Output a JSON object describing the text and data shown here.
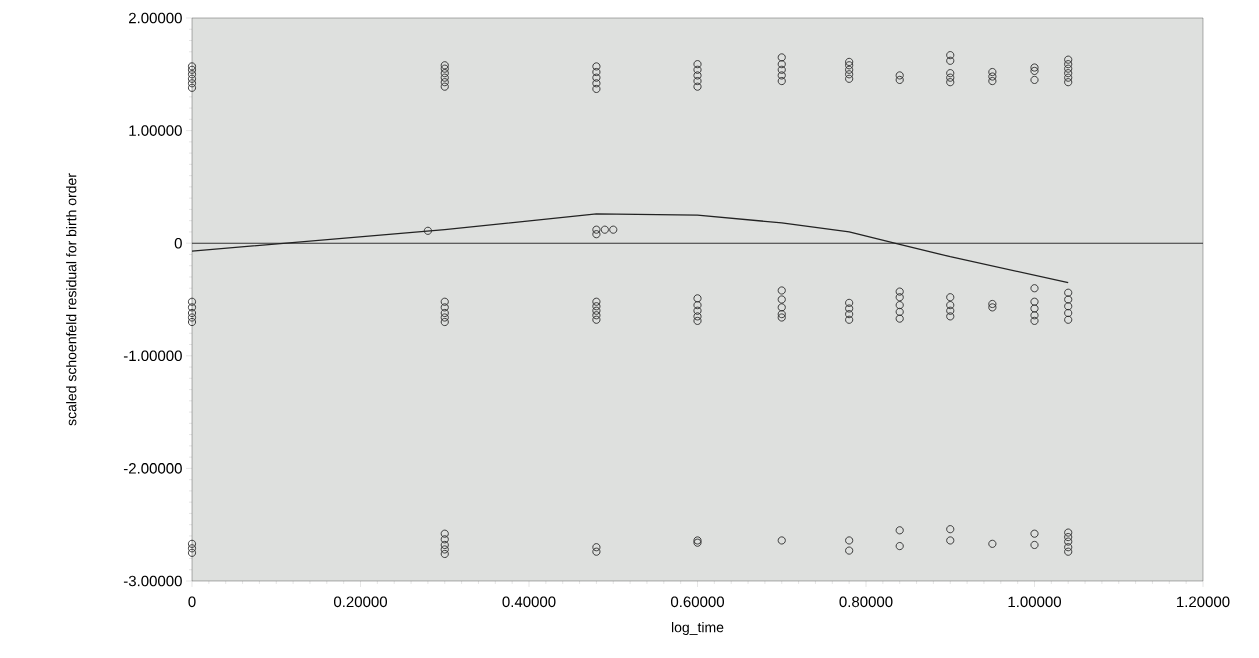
{
  "chart_data": {
    "type": "scatter",
    "xlabel": "log_time",
    "ylabel": "scaled schoenfeld residual for birth order",
    "xlim": [
      0,
      1.2
    ],
    "ylim": [
      -3,
      2
    ],
    "xticks": [
      0,
      {
        "value": 0.2,
        "label": "0.20000"
      },
      {
        "value": 0.4,
        "label": "0.40000"
      },
      {
        "value": 0.6,
        "label": "0.60000"
      },
      {
        "value": 0.8,
        "label": "0.80000"
      },
      {
        "value": 1.0,
        "label": "1.00000"
      },
      {
        "value": 1.2,
        "label": "1.20000"
      }
    ],
    "yticks": [
      {
        "value": -3,
        "label": "-3.00000"
      },
      {
        "value": -2,
        "label": "-2.00000"
      },
      {
        "value": -1,
        "label": "-1.00000"
      },
      0,
      {
        "value": 1,
        "label": "1.00000"
      },
      {
        "value": 2,
        "label": "2.00000"
      }
    ],
    "grid": false,
    "ref_lines": [
      {
        "axis": "y",
        "value": 0,
        "color": "#333333"
      }
    ],
    "series": [
      {
        "marker": "circle",
        "color": "#2a2a2a",
        "x": [
          0,
          0,
          0,
          0,
          0,
          0,
          0,
          0,
          0,
          0,
          0,
          0,
          0,
          0,
          0.3,
          0.3,
          0.3,
          0.3,
          0.3,
          0.3,
          0.3,
          0.3,
          0.3,
          0.3,
          0.3,
          0.3,
          0.3,
          0.3,
          0.3,
          0.3,
          0.48,
          0.48,
          0.48,
          0.48,
          0.48,
          0.48,
          0.48,
          0.48,
          0.48,
          0.48,
          0.48,
          0.48,
          0.48,
          0.6,
          0.6,
          0.6,
          0.6,
          0.6,
          0.6,
          0.6,
          0.6,
          0.6,
          0.6,
          0.6,
          0.6,
          0.7,
          0.7,
          0.7,
          0.7,
          0.7,
          0.7,
          0.7,
          0.7,
          0.7,
          0.7,
          0.7,
          0.78,
          0.78,
          0.78,
          0.78,
          0.78,
          0.78,
          0.78,
          0.78,
          0.78,
          0.78,
          0.78,
          0.84,
          0.84,
          0.84,
          0.84,
          0.84,
          0.84,
          0.84,
          0.84,
          0.84,
          0.9,
          0.9,
          0.9,
          0.9,
          0.9,
          0.9,
          0.9,
          0.9,
          0.9,
          0.9,
          0.9,
          0.95,
          0.95,
          0.95,
          0.95,
          0.95,
          0.95,
          1.0,
          1.0,
          1.0,
          1.0,
          1.0,
          1.0,
          1.0,
          1.0,
          1.0,
          1.0,
          1.04,
          1.04,
          1.04,
          1.04,
          1.04,
          1.04,
          1.04,
          1.04,
          1.04,
          1.04,
          1.04,
          1.04,
          1.04,
          1.04,
          1.04,
          1.04,
          0.28,
          0.48,
          0.49,
          0.5
        ],
        "values": [
          1.38,
          1.42,
          1.46,
          1.5,
          1.54,
          1.57,
          -0.52,
          -0.57,
          -0.62,
          -0.66,
          -0.7,
          -2.67,
          -2.71,
          -2.75,
          1.39,
          1.43,
          1.47,
          1.51,
          1.55,
          1.58,
          -0.52,
          -0.57,
          -0.62,
          -0.66,
          -0.7,
          -2.58,
          -2.63,
          -2.68,
          -2.72,
          -2.76,
          1.37,
          1.42,
          1.47,
          1.52,
          1.57,
          -0.52,
          -0.56,
          -0.6,
          -0.64,
          -0.68,
          -2.7,
          -2.74,
          0.08,
          1.39,
          1.44,
          1.49,
          1.54,
          1.59,
          -0.49,
          -0.55,
          -0.6,
          -0.65,
          -0.69,
          -2.64,
          -2.66,
          1.44,
          1.49,
          1.54,
          1.59,
          1.65,
          -0.42,
          -0.5,
          -0.57,
          -0.63,
          -0.66,
          -2.64,
          1.46,
          1.5,
          1.54,
          1.58,
          1.61,
          -0.53,
          -0.58,
          -0.63,
          -0.68,
          -2.64,
          -2.73,
          1.45,
          1.49,
          -0.43,
          -0.48,
          -0.55,
          -0.61,
          -0.67,
          -2.55,
          -2.69,
          1.43,
          1.47,
          1.51,
          1.62,
          1.67,
          -0.48,
          -0.55,
          -0.6,
          -0.65,
          -2.54,
          -2.64,
          1.44,
          1.48,
          1.52,
          -0.54,
          -0.57,
          -2.67,
          1.45,
          1.53,
          1.56,
          -0.4,
          -0.52,
          -0.58,
          -0.64,
          -0.69,
          -2.58,
          -2.68,
          1.43,
          1.47,
          1.51,
          1.55,
          1.59,
          1.63,
          -0.44,
          -0.5,
          -0.56,
          -0.62,
          -0.68,
          -2.57,
          -2.61,
          -2.65,
          -2.7,
          -2.74,
          0.11,
          0.12,
          0.12,
          0.12
        ]
      },
      {
        "type": "line",
        "marker": "none",
        "line_style": "solid",
        "color": "#222222",
        "x": [
          0,
          0.3,
          0.48,
          0.6,
          0.7,
          0.78,
          0.84,
          0.9,
          1.04
        ],
        "values": [
          -0.07,
          0.12,
          0.26,
          0.25,
          0.18,
          0.1,
          -0.01,
          -0.12,
          -0.35
        ]
      }
    ]
  }
}
